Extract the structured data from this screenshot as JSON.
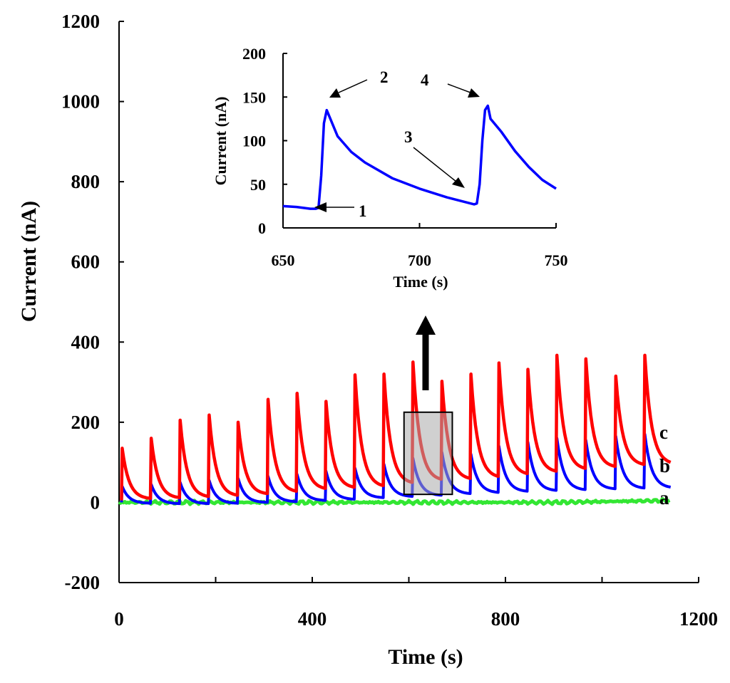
{
  "chart_data": [
    {
      "id": "main",
      "type": "line",
      "title": "",
      "xlabel": "Time (s)",
      "ylabel": "Current (nA)",
      "xlim": [
        0,
        1200
      ],
      "ylim": [
        -200,
        1200
      ],
      "xticks": [
        0,
        400,
        800,
        1200
      ],
      "yticks": [
        -200,
        0,
        200,
        400,
        600,
        800,
        1000,
        1200
      ],
      "pulse_times": [
        5,
        65,
        125,
        185,
        245,
        307,
        367,
        427,
        487,
        547,
        607,
        667,
        727,
        785,
        845,
        905,
        965,
        1027,
        1087
      ],
      "series": [
        {
          "name": "a",
          "color": "#33e633",
          "values_desc": "baseline ~0 nA",
          "baseline": 0
        },
        {
          "name": "b",
          "color": "#0000ff",
          "peaks": [
            40,
            45,
            50,
            55,
            60,
            65,
            70,
            78,
            85,
            95,
            110,
            125,
            120,
            140,
            150,
            160,
            155,
            165,
            170
          ],
          "troughs": [
            -2,
            -3,
            -3,
            -2,
            0,
            2,
            5,
            8,
            12,
            15,
            18,
            22,
            25,
            28,
            30,
            32,
            34,
            36,
            38
          ]
        },
        {
          "name": "c",
          "color": "#ff0000",
          "peaks": [
            135,
            160,
            205,
            218,
            200,
            257,
            272,
            252,
            318,
            320,
            350,
            302,
            320,
            348,
            332,
            367,
            358,
            315,
            367
          ],
          "troughs": [
            10,
            12,
            15,
            18,
            22,
            28,
            35,
            38,
            42,
            50,
            58,
            60,
            65,
            72,
            78,
            85,
            90,
            95,
            100
          ]
        }
      ],
      "series_labels": [
        "a",
        "b",
        "c"
      ],
      "zoom_box": {
        "x_range": [
          590,
          690
        ],
        "y_range": [
          20,
          225
        ]
      },
      "grid": false
    },
    {
      "id": "inset",
      "type": "line",
      "title": "",
      "xlabel": "Time (s)",
      "ylabel": "Current (nA)",
      "xlim": [
        650,
        750
      ],
      "ylim": [
        0,
        200
      ],
      "xticks": [
        650,
        700,
        750
      ],
      "yticks": [
        0,
        50,
        100,
        150,
        200
      ],
      "series": [
        {
          "name": "b",
          "color": "#0000ff",
          "x": [
            650,
            655,
            660,
            662,
            663,
            664,
            665,
            666,
            670,
            675,
            680,
            690,
            700,
            710,
            720,
            721,
            722,
            723,
            724,
            725,
            726,
            730,
            735,
            740,
            745,
            750
          ],
          "y": [
            25,
            24,
            22,
            22,
            23,
            60,
            120,
            135,
            105,
            87,
            75,
            57,
            45,
            35,
            27,
            28,
            50,
            100,
            135,
            140,
            125,
            110,
            88,
            70,
            55,
            45
          ]
        }
      ],
      "annotations": [
        {
          "label": "1",
          "x": 663,
          "y": 22
        },
        {
          "label": "2",
          "x": 666,
          "y": 135
        },
        {
          "label": "3",
          "x": 720,
          "y": 45
        },
        {
          "label": "4",
          "x": 724,
          "y": 140
        }
      ]
    }
  ]
}
